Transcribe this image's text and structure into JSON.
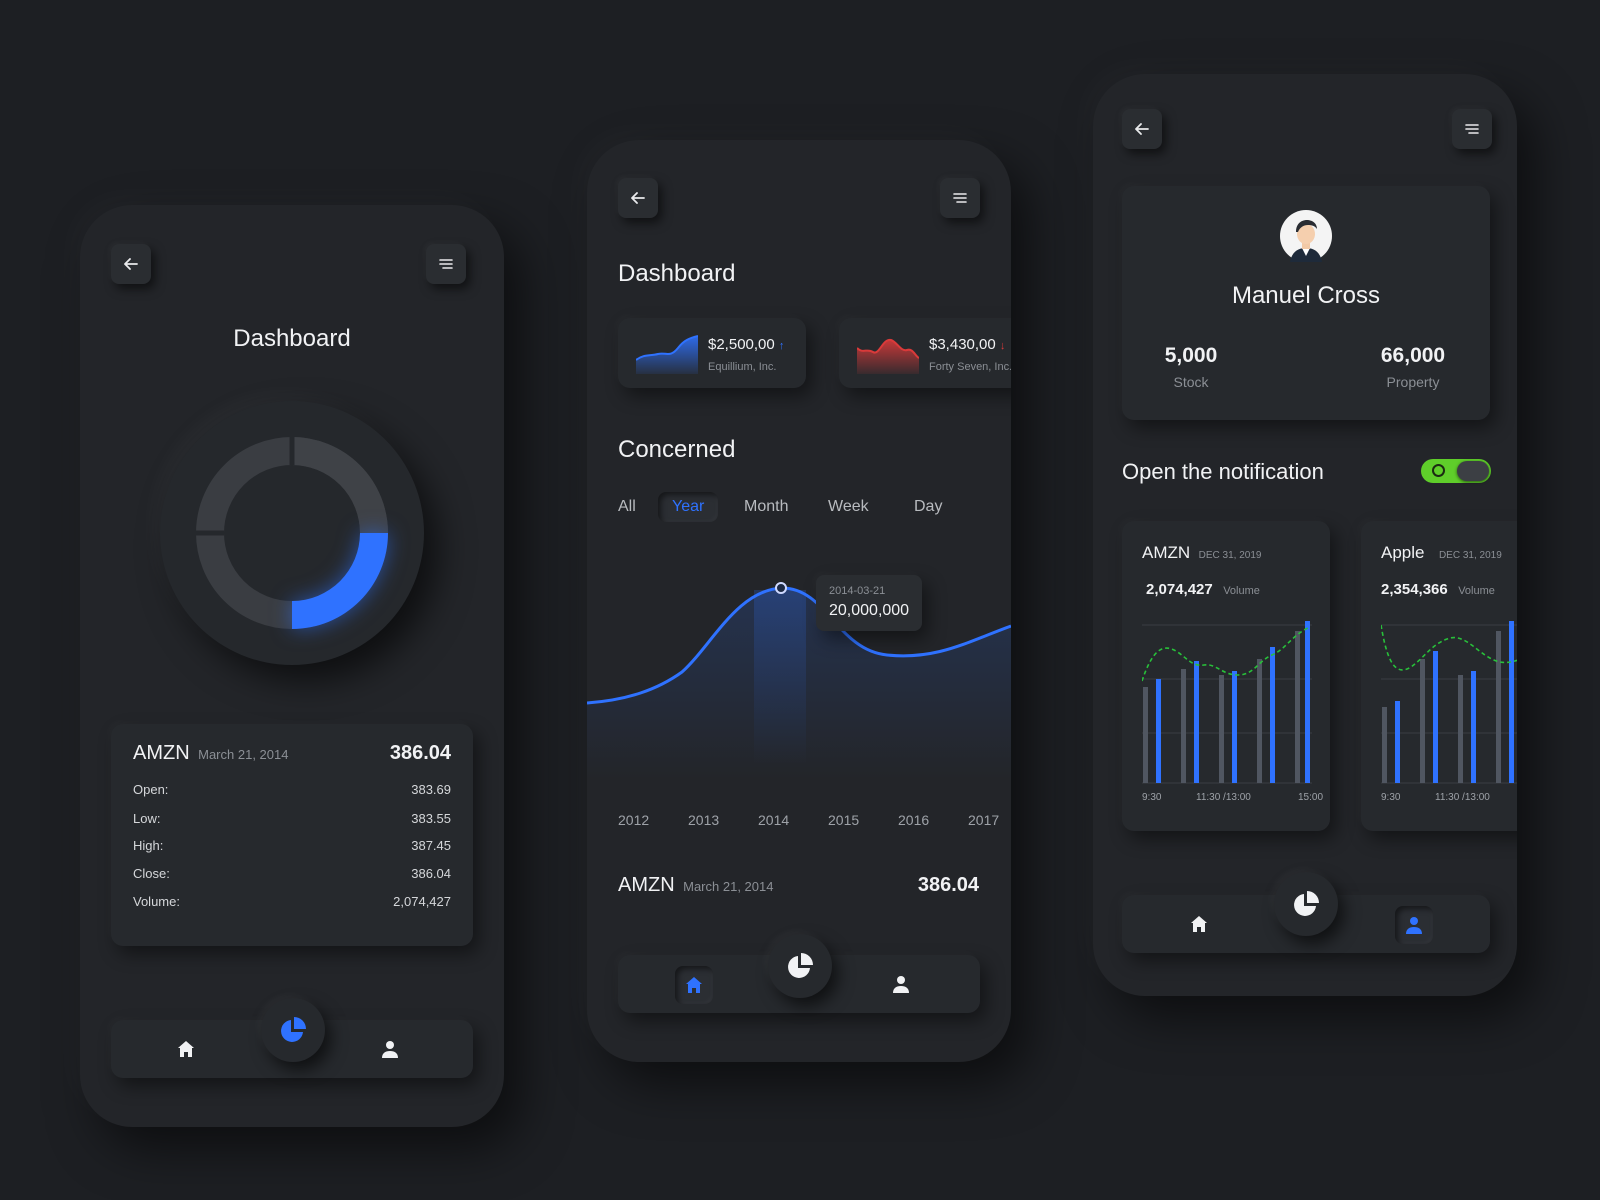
{
  "colors": {
    "background": "#1d1f23",
    "phone": "#232529",
    "accent": "#2f72ff",
    "red": "#d93a3a",
    "green": "#28c03a",
    "toggle_on": "#5fce2a"
  },
  "screen1": {
    "title": "Dashboard",
    "donut": {
      "highlight_fraction": 0.25,
      "color": "#2f72ff"
    },
    "quote": {
      "ticker": "AMZN",
      "date": "March 21, 2014",
      "price": "386.04",
      "rows": [
        {
          "label": "Open:",
          "value": "383.69"
        },
        {
          "label": "Low:",
          "value": "383.55"
        },
        {
          "label": "High:",
          "value": "387.45"
        },
        {
          "label": "Close:",
          "value": "386.04"
        },
        {
          "label": "Volume:",
          "value": "2,074,427"
        }
      ]
    }
  },
  "screen2": {
    "title": "Dashboard",
    "stocks": [
      {
        "price": "$2,500,00",
        "name": "Equillium, Inc.",
        "trend": "up"
      },
      {
        "price": "$3,430,00",
        "name": "Forty Seven, Inc.",
        "trend": "down"
      }
    ],
    "section_title": "Concerned",
    "tabs": [
      "All",
      "Year",
      "Month",
      "Week",
      "Day"
    ],
    "active_tab": "Year",
    "tooltip": {
      "date": "2014-03-21",
      "value": "20,000,000"
    },
    "x_labels": [
      "2012",
      "2013",
      "2014",
      "2015",
      "2016",
      "2017"
    ],
    "quote": {
      "ticker": "AMZN",
      "date": "March 21, 2014",
      "price": "386.04"
    }
  },
  "screen3": {
    "profile": {
      "name": "Manuel Cross",
      "stats": [
        {
          "value": "5,000",
          "label": "Stock"
        },
        {
          "value": "66,000",
          "label": "Property"
        }
      ]
    },
    "notification": {
      "label": "Open the notification",
      "enabled": true
    },
    "volume_cards": [
      {
        "ticker": "AMZN",
        "date": "DEC 31, 2019",
        "value": "2,074,427",
        "unit": "Volume",
        "x_labels": [
          "9:30",
          "11:30 /13:00",
          "15:00"
        ]
      },
      {
        "ticker": "Apple",
        "date": "DEC 31, 2019",
        "value": "2,354,366",
        "unit": "Volume",
        "x_labels": [
          "9:30",
          "11:30 /13:00"
        ]
      }
    ]
  }
}
